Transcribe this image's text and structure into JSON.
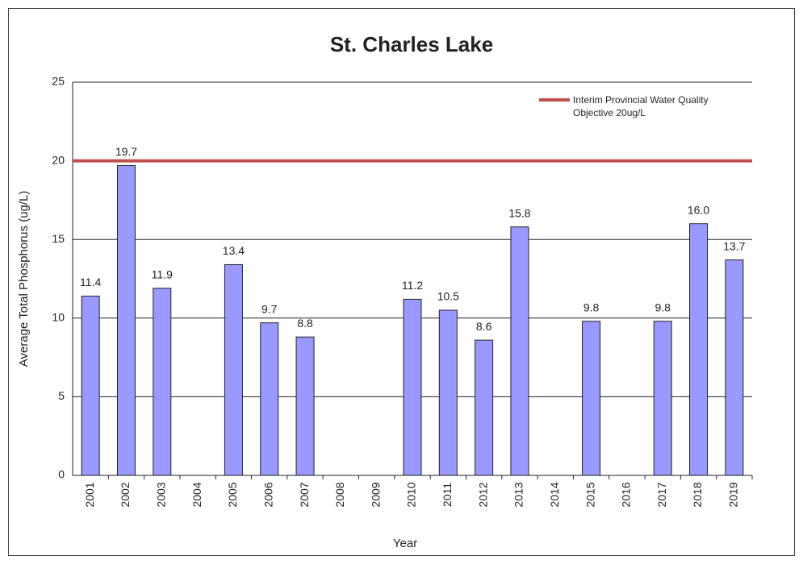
{
  "chart_data": {
    "type": "bar",
    "title": "St. Charles Lake",
    "x_label": "Year",
    "y_label": "Average Total Phosphorus (ug/L)",
    "categories": [
      "2001",
      "2002",
      "2003",
      "2004",
      "2005",
      "2006",
      "2007",
      "2008",
      "2009",
      "2010",
      "2011",
      "2012",
      "2013",
      "2014",
      "2015",
      "2016",
      "2017",
      "2018",
      "2019"
    ],
    "values": [
      11.4,
      19.7,
      11.9,
      null,
      13.4,
      9.7,
      8.8,
      null,
      null,
      11.2,
      10.5,
      8.6,
      15.8,
      null,
      9.8,
      null,
      9.8,
      16.0,
      13.7
    ],
    "value_labels": [
      "11.4",
      "19.7",
      "11.9",
      null,
      "13.4",
      "9.7",
      "8.8",
      null,
      null,
      "11.2",
      "10.5",
      "8.6",
      "15.8",
      null,
      "9.8",
      null,
      "9.8",
      "16.0",
      "13.7"
    ],
    "color": "#9999ff",
    "ylim": [
      0,
      25
    ],
    "yticks": [
      0,
      5,
      10,
      15,
      20,
      25
    ],
    "grid": true,
    "reference_line": {
      "value": 20,
      "label": "Interim Provincial Water Quality Objective  20ug/L",
      "color": "#c0504d"
    },
    "legend_position": "upper right"
  }
}
